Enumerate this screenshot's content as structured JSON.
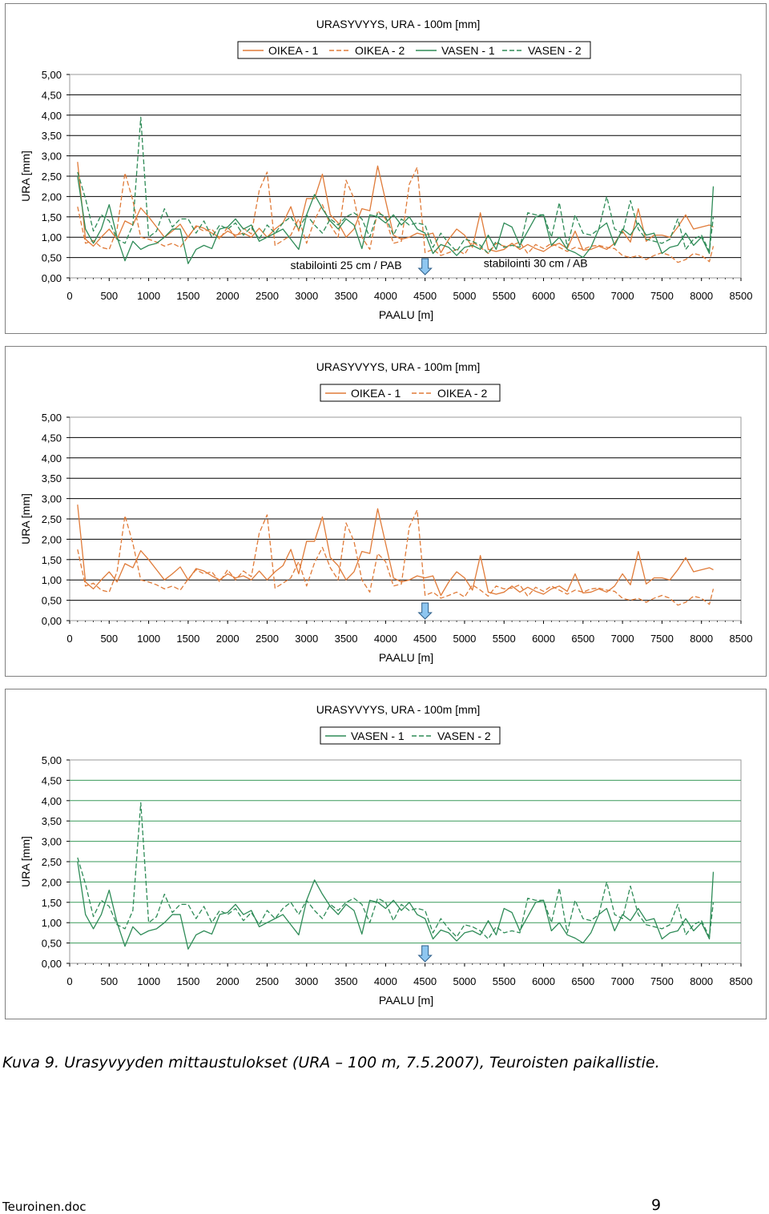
{
  "chart_data": [
    {
      "type": "line",
      "title": "URASYVYYS, URA - 100m [mm]",
      "xlabel": "PAALU [m]",
      "ylabel": "URA [mm]",
      "xlim": [
        0,
        8500
      ],
      "ylim": [
        0,
        5
      ],
      "xticks": [
        "0",
        "500",
        "1000",
        "1500",
        "2000",
        "2500",
        "3000",
        "3500",
        "4000",
        "4500",
        "5000",
        "5500",
        "6000",
        "6500",
        "7000",
        "7500",
        "8000",
        "8500"
      ],
      "yticks": [
        "0,00",
        "0,50",
        "1,00",
        "1,50",
        "2,00",
        "2,50",
        "3,00",
        "3,50",
        "4,00",
        "4,50",
        "5,00"
      ],
      "grid": true,
      "legend": "top-center",
      "annotations": [
        {
          "text": "stabilointi 25 cm / PAB",
          "x": 3500,
          "y": 0.22
        },
        {
          "text": "stabilointi 30 cm / AB",
          "x": 5900,
          "y": 0.27
        }
      ],
      "marker_x": 4500,
      "series_keys": [
        "oikea1",
        "oikea2",
        "vasen1",
        "vasen2"
      ]
    },
    {
      "type": "line",
      "title": "URASYVYYS, URA - 100m [mm]",
      "xlabel": "PAALU [m]",
      "ylabel": "URA [mm]",
      "xlim": [
        0,
        8500
      ],
      "ylim": [
        0,
        5
      ],
      "xticks": [
        "0",
        "500",
        "1000",
        "1500",
        "2000",
        "2500",
        "3000",
        "3500",
        "4000",
        "4500",
        "5000",
        "5500",
        "6000",
        "6500",
        "7000",
        "7500",
        "8000",
        "8500"
      ],
      "yticks": [
        "0,00",
        "0,50",
        "1,00",
        "1,50",
        "2,00",
        "2,50",
        "3,00",
        "3,50",
        "4,00",
        "4,50",
        "5,00"
      ],
      "grid": true,
      "legend": "top-center",
      "marker_x": 4500,
      "series_keys": [
        "oikea1",
        "oikea2"
      ]
    },
    {
      "type": "line",
      "title": "URASYVYYS, URA - 100m [mm]",
      "xlabel": "PAALU [m]",
      "ylabel": "URA [mm]",
      "xlim": [
        0,
        8500
      ],
      "ylim": [
        0,
        5
      ],
      "xticks": [
        "0",
        "500",
        "1000",
        "1500",
        "2000",
        "2500",
        "3000",
        "3500",
        "4000",
        "4500",
        "5000",
        "5500",
        "6000",
        "6500",
        "7000",
        "7500",
        "8000",
        "8500"
      ],
      "yticks": [
        "0,00",
        "0,50",
        "1,00",
        "1,50",
        "2,00",
        "2,50",
        "3,00",
        "3,50",
        "4,00",
        "4,50",
        "5,00"
      ],
      "grid": true,
      "legend": "top-center",
      "marker_x": 4500,
      "series_keys": [
        "vasen1",
        "vasen2"
      ]
    }
  ],
  "series": {
    "oikea1": {
      "name": "OIKEA - 1",
      "color": "#e07b39",
      "dash": false,
      "x": [
        100,
        200,
        300,
        400,
        500,
        600,
        700,
        800,
        900,
        1000,
        1100,
        1200,
        1300,
        1400,
        1500,
        1600,
        1700,
        1800,
        1900,
        2000,
        2100,
        2200,
        2300,
        2400,
        2500,
        2600,
        2700,
        2800,
        2900,
        3000,
        3100,
        3200,
        3300,
        3400,
        3500,
        3600,
        3700,
        3800,
        3900,
        4000,
        4100,
        4200,
        4300,
        4400,
        4500,
        4600,
        4700,
        4800,
        4900,
        5000,
        5100,
        5200,
        5300,
        5400,
        5500,
        5600,
        5700,
        5800,
        5900,
        6000,
        6100,
        6200,
        6300,
        6400,
        6500,
        6600,
        6700,
        6800,
        6900,
        7000,
        7100,
        7200,
        7300,
        7400,
        7500,
        7600,
        7700,
        7800,
        7900,
        8000,
        8100,
        8150
      ],
      "y": [
        2.85,
        0.95,
        0.78,
        1.0,
        1.2,
        0.95,
        1.4,
        1.3,
        1.72,
        1.5,
        1.25,
        1.0,
        1.15,
        1.32,
        1.0,
        1.28,
        1.22,
        1.1,
        1.0,
        1.15,
        1.05,
        1.1,
        1.0,
        1.22,
        1.0,
        1.2,
        1.35,
        1.75,
        1.15,
        1.95,
        1.95,
        2.55,
        1.55,
        1.35,
        1.0,
        1.2,
        1.7,
        1.65,
        2.75,
        1.9,
        1.05,
        0.95,
        1.0,
        1.1,
        1.05,
        1.1,
        0.62,
        0.95,
        1.2,
        1.05,
        0.75,
        1.6,
        0.7,
        0.65,
        0.7,
        0.85,
        0.7,
        0.82,
        0.72,
        0.65,
        0.78,
        0.85,
        0.72,
        1.15,
        0.68,
        0.7,
        0.78,
        0.7,
        0.85,
        1.15,
        0.88,
        1.7,
        0.9,
        1.05,
        1.05,
        1.0,
        1.25,
        1.55,
        1.2,
        1.25,
        1.3,
        1.25
      ]
    },
    "oikea2": {
      "name": "OIKEA - 2",
      "color": "#e07b39",
      "dash": true,
      "x": [
        100,
        200,
        300,
        400,
        500,
        600,
        700,
        800,
        900,
        1000,
        1100,
        1200,
        1300,
        1400,
        1500,
        1600,
        1700,
        1800,
        1900,
        2000,
        2100,
        2200,
        2300,
        2400,
        2500,
        2600,
        2700,
        2800,
        2900,
        3000,
        3100,
        3200,
        3300,
        3400,
        3500,
        3600,
        3700,
        3800,
        3900,
        4000,
        4100,
        4200,
        4300,
        4400,
        4500,
        4600,
        4700,
        4800,
        4900,
        5000,
        5100,
        5200,
        5300,
        5400,
        5500,
        5600,
        5700,
        5800,
        5900,
        6000,
        6100,
        6200,
        6300,
        6400,
        6500,
        6600,
        6700,
        6800,
        6900,
        7000,
        7100,
        7200,
        7300,
        7400,
        7500,
        7600,
        7700,
        7800,
        7900,
        8000,
        8100,
        8150
      ],
      "y": [
        1.75,
        0.85,
        0.92,
        0.75,
        0.7,
        1.2,
        2.58,
        1.9,
        1.0,
        0.95,
        0.88,
        0.78,
        0.85,
        0.75,
        1.02,
        1.25,
        1.15,
        1.2,
        0.95,
        1.25,
        1.0,
        1.22,
        1.08,
        2.15,
        2.6,
        0.8,
        0.92,
        1.05,
        1.45,
        0.85,
        1.42,
        1.8,
        1.3,
        1.0,
        2.4,
        1.95,
        1.0,
        0.7,
        1.65,
        1.45,
        0.85,
        0.9,
        2.3,
        2.72,
        0.62,
        0.7,
        0.55,
        0.62,
        0.7,
        0.58,
        0.88,
        0.75,
        0.6,
        0.85,
        0.78,
        0.8,
        0.88,
        0.6,
        0.82,
        0.72,
        0.85,
        0.75,
        0.65,
        0.75,
        0.7,
        0.78,
        0.8,
        0.75,
        0.72,
        0.55,
        0.5,
        0.55,
        0.45,
        0.55,
        0.62,
        0.55,
        0.38,
        0.45,
        0.6,
        0.55,
        0.4,
        0.78
      ]
    },
    "vasen1": {
      "name": "VASEN - 1",
      "color": "#2e8b57",
      "dash": false,
      "x": [
        100,
        200,
        300,
        400,
        500,
        600,
        700,
        800,
        900,
        1000,
        1100,
        1200,
        1300,
        1400,
        1500,
        1600,
        1700,
        1800,
        1900,
        2000,
        2100,
        2200,
        2300,
        2400,
        2500,
        2600,
        2700,
        2800,
        2900,
        3000,
        3100,
        3200,
        3300,
        3400,
        3500,
        3600,
        3700,
        3800,
        3900,
        4000,
        4100,
        4200,
        4300,
        4400,
        4500,
        4600,
        4700,
        4800,
        4900,
        5000,
        5100,
        5200,
        5300,
        5400,
        5500,
        5600,
        5700,
        5800,
        5900,
        6000,
        6100,
        6200,
        6300,
        6400,
        6500,
        6600,
        6700,
        6800,
        6900,
        7000,
        7100,
        7200,
        7300,
        7400,
        7500,
        7600,
        7700,
        7800,
        7900,
        8000,
        8100,
        8150
      ],
      "y": [
        2.5,
        1.2,
        0.85,
        1.2,
        1.8,
        1.0,
        0.42,
        0.9,
        0.7,
        0.8,
        0.85,
        1.0,
        1.2,
        1.2,
        0.35,
        0.7,
        0.8,
        0.72,
        1.2,
        1.25,
        1.45,
        1.2,
        1.3,
        0.9,
        1.0,
        1.1,
        1.2,
        0.95,
        0.7,
        1.55,
        2.05,
        1.7,
        1.4,
        1.2,
        1.45,
        1.3,
        0.72,
        1.55,
        1.5,
        1.35,
        1.55,
        1.3,
        1.5,
        1.2,
        1.1,
        0.6,
        0.82,
        0.75,
        0.55,
        0.75,
        0.8,
        0.7,
        1.05,
        0.7,
        1.35,
        1.25,
        0.8,
        1.15,
        1.5,
        1.55,
        0.8,
        1.0,
        0.7,
        0.62,
        0.5,
        0.75,
        1.2,
        1.35,
        0.8,
        1.2,
        1.05,
        1.35,
        1.05,
        1.1,
        0.6,
        0.75,
        0.8,
        1.1,
        0.8,
        1.0,
        0.6,
        2.25
      ]
    },
    "vasen2": {
      "name": "VASEN - 2",
      "color": "#2e8b57",
      "dash": true,
      "x": [
        100,
        200,
        300,
        400,
        500,
        600,
        700,
        800,
        900,
        1000,
        1100,
        1200,
        1300,
        1400,
        1500,
        1600,
        1700,
        1800,
        1900,
        2000,
        2100,
        2200,
        2300,
        2400,
        2500,
        2600,
        2700,
        2800,
        2900,
        3000,
        3100,
        3200,
        3300,
        3400,
        3500,
        3600,
        3700,
        3800,
        3900,
        4000,
        4100,
        4200,
        4300,
        4400,
        4500,
        4600,
        4700,
        4800,
        4900,
        5000,
        5100,
        5200,
        5300,
        5400,
        5500,
        5600,
        5700,
        5800,
        5900,
        6000,
        6100,
        6200,
        6300,
        6400,
        6500,
        6600,
        6700,
        6800,
        6900,
        7000,
        7100,
        7200,
        7300,
        7400,
        7500,
        7600,
        7700,
        7800,
        7900,
        8000,
        8100,
        8150
      ],
      "y": [
        2.6,
        1.95,
        1.15,
        1.55,
        1.4,
        0.95,
        0.85,
        1.3,
        3.95,
        1.0,
        1.15,
        1.7,
        1.25,
        1.45,
        1.45,
        1.1,
        1.4,
        1.0,
        1.3,
        1.2,
        1.35,
        1.05,
        1.25,
        0.95,
        1.3,
        1.1,
        1.35,
        1.5,
        1.2,
        1.55,
        1.3,
        1.1,
        1.45,
        1.3,
        1.5,
        1.6,
        1.45,
        1.0,
        1.6,
        1.5,
        1.05,
        1.45,
        1.3,
        1.35,
        1.3,
        0.75,
        1.1,
        0.85,
        0.65,
        0.95,
        0.9,
        0.8,
        0.6,
        0.9,
        0.75,
        0.8,
        0.75,
        1.6,
        1.55,
        1.55,
        1.0,
        1.85,
        0.75,
        1.55,
        1.1,
        1.05,
        1.2,
        2.0,
        1.2,
        1.1,
        1.9,
        1.2,
        0.95,
        0.9,
        0.85,
        0.95,
        1.45,
        0.7,
        0.95,
        1.05,
        0.65,
        1.5
      ]
    }
  },
  "caption": "Kuva 9. Urasyvyyden mittaustulokset (URA – 100 m, 7.5.2007), Teuroisten paikallistie.",
  "footer": {
    "filename": "Teuroinen.doc",
    "page": "9"
  }
}
